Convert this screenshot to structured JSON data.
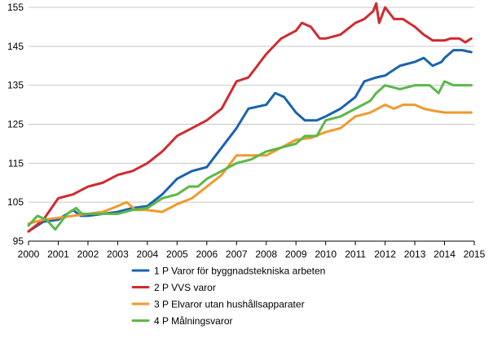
{
  "chart_data": {
    "type": "line",
    "title": "",
    "xlabel": "",
    "ylabel": "",
    "xlim": [
      2000,
      2015
    ],
    "ylim": [
      95,
      155
    ],
    "x_ticks": [
      "2000",
      "2001",
      "2002",
      "2003",
      "2004",
      "2005",
      "2006",
      "2007",
      "2008",
      "2009",
      "2010",
      "2011",
      "2012",
      "2013",
      "2014",
      "2015"
    ],
    "y_ticks": [
      "95",
      "105",
      "115",
      "125",
      "135",
      "145",
      "155"
    ],
    "grid": "horizontal",
    "legend_position": "bottom",
    "series": [
      {
        "name": "1 P Varor för byggnadstekniska arbeten",
        "color": "#1a63b0",
        "points": [
          [
            2000,
            97.5
          ],
          [
            2000.5,
            100
          ],
          [
            2001,
            100.5
          ],
          [
            2001.5,
            103
          ],
          [
            2001.75,
            101.5
          ],
          [
            2002,
            101.5
          ],
          [
            2002.5,
            102
          ],
          [
            2003,
            102.5
          ],
          [
            2003.5,
            103.5
          ],
          [
            2004,
            104
          ],
          [
            2004.5,
            107
          ],
          [
            2005,
            111
          ],
          [
            2005.5,
            113
          ],
          [
            2006,
            114
          ],
          [
            2006.5,
            119
          ],
          [
            2007,
            124
          ],
          [
            2007.4,
            129
          ],
          [
            2008,
            130
          ],
          [
            2008.3,
            133
          ],
          [
            2008.6,
            132
          ],
          [
            2009,
            128
          ],
          [
            2009.3,
            126
          ],
          [
            2009.7,
            126
          ],
          [
            2010,
            127
          ],
          [
            2010.5,
            129
          ],
          [
            2011,
            132
          ],
          [
            2011.3,
            136
          ],
          [
            2011.7,
            137
          ],
          [
            2012,
            137.5
          ],
          [
            2012.3,
            139
          ],
          [
            2012.5,
            140
          ],
          [
            2013,
            141
          ],
          [
            2013.3,
            142
          ],
          [
            2013.6,
            140
          ],
          [
            2013.9,
            141
          ],
          [
            2014,
            142
          ],
          [
            2014.3,
            144
          ],
          [
            2014.6,
            144
          ],
          [
            2014.9,
            143.5
          ]
        ]
      },
      {
        "name": "2 P VVS varor",
        "color": "#d12a2f",
        "points": [
          [
            2000,
            97.5
          ],
          [
            2000.5,
            100.5
          ],
          [
            2001,
            106
          ],
          [
            2001.5,
            107
          ],
          [
            2002,
            109
          ],
          [
            2002.5,
            110
          ],
          [
            2003,
            112
          ],
          [
            2003.5,
            113
          ],
          [
            2004,
            115
          ],
          [
            2004.5,
            118
          ],
          [
            2005,
            122
          ],
          [
            2005.5,
            124
          ],
          [
            2006,
            126
          ],
          [
            2006.5,
            129
          ],
          [
            2007,
            136
          ],
          [
            2007.4,
            137
          ],
          [
            2007.7,
            140
          ],
          [
            2008,
            143
          ],
          [
            2008.5,
            147
          ],
          [
            2009,
            149
          ],
          [
            2009.2,
            151
          ],
          [
            2009.5,
            150
          ],
          [
            2009.8,
            147
          ],
          [
            2010,
            147
          ],
          [
            2010.5,
            148
          ],
          [
            2011,
            151
          ],
          [
            2011.3,
            152
          ],
          [
            2011.6,
            154
          ],
          [
            2011.7,
            156
          ],
          [
            2011.8,
            151
          ],
          [
            2012,
            155
          ],
          [
            2012.3,
            152
          ],
          [
            2012.6,
            152
          ],
          [
            2013,
            150
          ],
          [
            2013.3,
            148
          ],
          [
            2013.6,
            146.5
          ],
          [
            2014,
            146.5
          ],
          [
            2014.2,
            147
          ],
          [
            2014.5,
            147
          ],
          [
            2014.7,
            146
          ],
          [
            2014.9,
            147
          ]
        ]
      },
      {
        "name": "3 P Elvaror utan hushållsapparater",
        "color": "#f09a2e",
        "points": [
          [
            2000,
            99.5
          ],
          [
            2000.5,
            100.5
          ],
          [
            2001,
            101
          ],
          [
            2001.5,
            101.5
          ],
          [
            2002,
            102
          ],
          [
            2002.5,
            102.5
          ],
          [
            2003,
            104
          ],
          [
            2003.3,
            105
          ],
          [
            2003.6,
            103
          ],
          [
            2004,
            103
          ],
          [
            2004.5,
            102.5
          ],
          [
            2005,
            104.5
          ],
          [
            2005.5,
            106
          ],
          [
            2006,
            109
          ],
          [
            2006.5,
            112
          ],
          [
            2007,
            117
          ],
          [
            2007.5,
            117
          ],
          [
            2008,
            117
          ],
          [
            2008.5,
            119
          ],
          [
            2009,
            121
          ],
          [
            2009.5,
            121.5
          ],
          [
            2010,
            123
          ],
          [
            2010.5,
            124
          ],
          [
            2011,
            127
          ],
          [
            2011.5,
            128
          ],
          [
            2012,
            130
          ],
          [
            2012.3,
            129
          ],
          [
            2012.6,
            130
          ],
          [
            2013,
            130
          ],
          [
            2013.3,
            129
          ],
          [
            2013.6,
            128.5
          ],
          [
            2014,
            128
          ],
          [
            2014.5,
            128
          ],
          [
            2014.9,
            128
          ]
        ]
      },
      {
        "name": "4 P Målningsvaror",
        "color": "#5cb847",
        "points": [
          [
            2000,
            99
          ],
          [
            2000.3,
            101.5
          ],
          [
            2000.6,
            100.5
          ],
          [
            2000.9,
            98
          ],
          [
            2001,
            99
          ],
          [
            2001.3,
            102
          ],
          [
            2001.6,
            103.5
          ],
          [
            2001.8,
            102
          ],
          [
            2002,
            102
          ],
          [
            2002.5,
            102
          ],
          [
            2003,
            102
          ],
          [
            2003.5,
            103
          ],
          [
            2004,
            103.5
          ],
          [
            2004.5,
            106
          ],
          [
            2005,
            107
          ],
          [
            2005.4,
            109
          ],
          [
            2005.7,
            109
          ],
          [
            2006,
            111
          ],
          [
            2006.5,
            113
          ],
          [
            2007,
            115
          ],
          [
            2007.5,
            116
          ],
          [
            2008,
            118
          ],
          [
            2008.5,
            119
          ],
          [
            2009,
            120
          ],
          [
            2009.3,
            122
          ],
          [
            2009.7,
            122
          ],
          [
            2010,
            126
          ],
          [
            2010.5,
            127
          ],
          [
            2011,
            129
          ],
          [
            2011.5,
            131
          ],
          [
            2011.7,
            133
          ],
          [
            2012,
            135
          ],
          [
            2012.5,
            134
          ],
          [
            2013,
            135
          ],
          [
            2013.5,
            135
          ],
          [
            2013.8,
            133
          ],
          [
            2014,
            136
          ],
          [
            2014.3,
            135
          ],
          [
            2014.6,
            135
          ],
          [
            2014.9,
            135
          ]
        ]
      }
    ]
  }
}
